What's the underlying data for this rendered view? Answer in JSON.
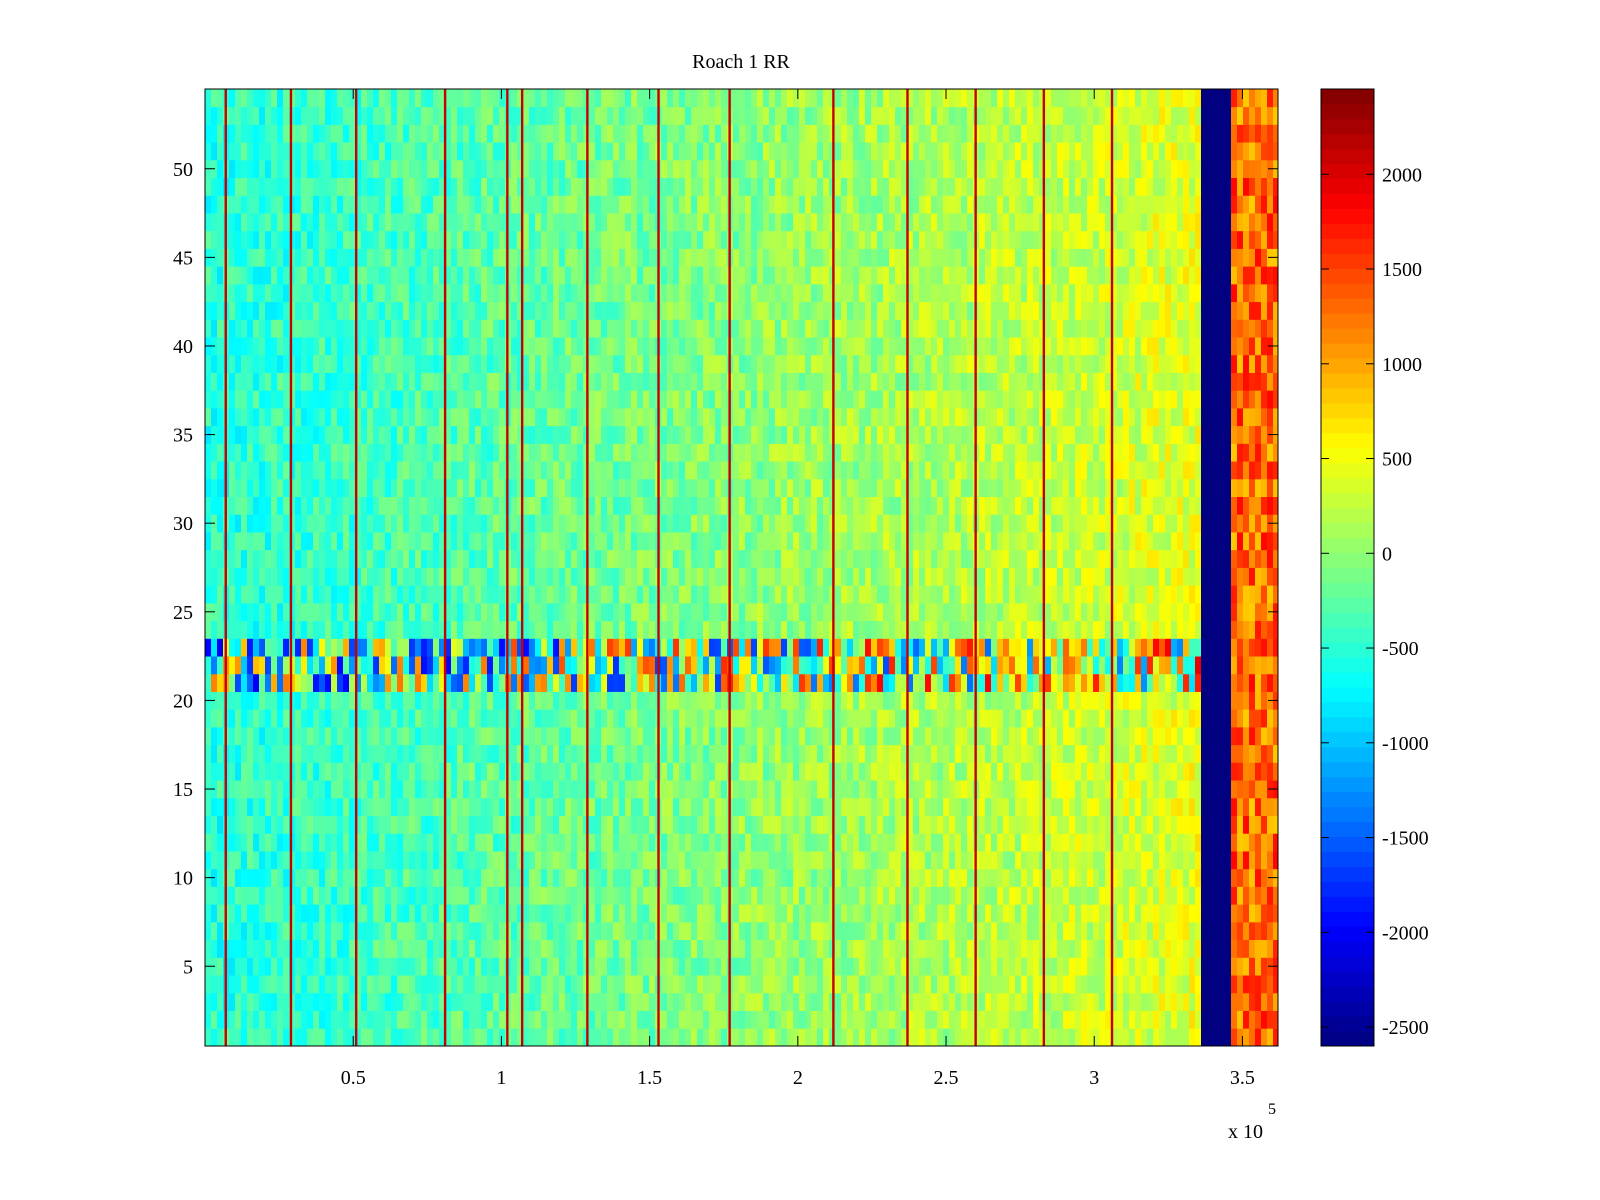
{
  "chart_data": {
    "type": "heatmap",
    "title": "Roach 1 RR",
    "xlabel": "",
    "ylabel": "",
    "x_multiplier_label": "x 10",
    "x_multiplier_exponent": "5",
    "xlim": [
      0,
      3.62
    ],
    "ylim": [
      0.5,
      54.5
    ],
    "x_ticks": [
      0.5,
      1,
      1.5,
      2,
      2.5,
      3,
      3.5
    ],
    "x_tick_labels": [
      "0.5",
      "1",
      "1.5",
      "2",
      "2.5",
      "3",
      "3.5"
    ],
    "y_ticks": [
      5,
      10,
      15,
      20,
      25,
      30,
      35,
      40,
      45,
      50
    ],
    "y_tick_labels": [
      "5",
      "10",
      "15",
      "20",
      "25",
      "30",
      "35",
      "40",
      "45",
      "50"
    ],
    "colormap": "jet",
    "color_limits": [
      -2600,
      2450
    ],
    "colorbar_ticks": [
      2000,
      1500,
      1000,
      500,
      0,
      -500,
      -1000,
      -1500,
      -2000,
      -2500
    ],
    "colorbar_tick_labels": [
      "2000",
      "1500",
      "1000",
      "500",
      "0",
      "-500",
      "-1000",
      "-1500",
      "-2000",
      "-2500"
    ],
    "rows": 54,
    "baseline_trend": {
      "x": [
        0,
        0.5,
        1.0,
        1.5,
        2.0,
        2.5,
        3.0,
        3.36
      ],
      "value": [
        -520,
        -420,
        -250,
        -120,
        40,
        160,
        300,
        420
      ]
    },
    "saturated_band": {
      "x_start": 3.36,
      "x_end": 3.47,
      "value": -2600
    },
    "right_edge_region": {
      "x_start": 3.47,
      "x_end": 3.62,
      "value": 1300
    },
    "vertical_spike_lines_x": [
      0.07,
      0.29,
      0.51,
      0.81,
      1.02,
      1.07,
      1.29,
      1.53,
      1.77,
      2.12,
      2.37,
      2.6,
      2.83,
      3.06
    ],
    "spike_value": 2100,
    "noisy_rows": [
      21,
      22,
      23
    ]
  }
}
